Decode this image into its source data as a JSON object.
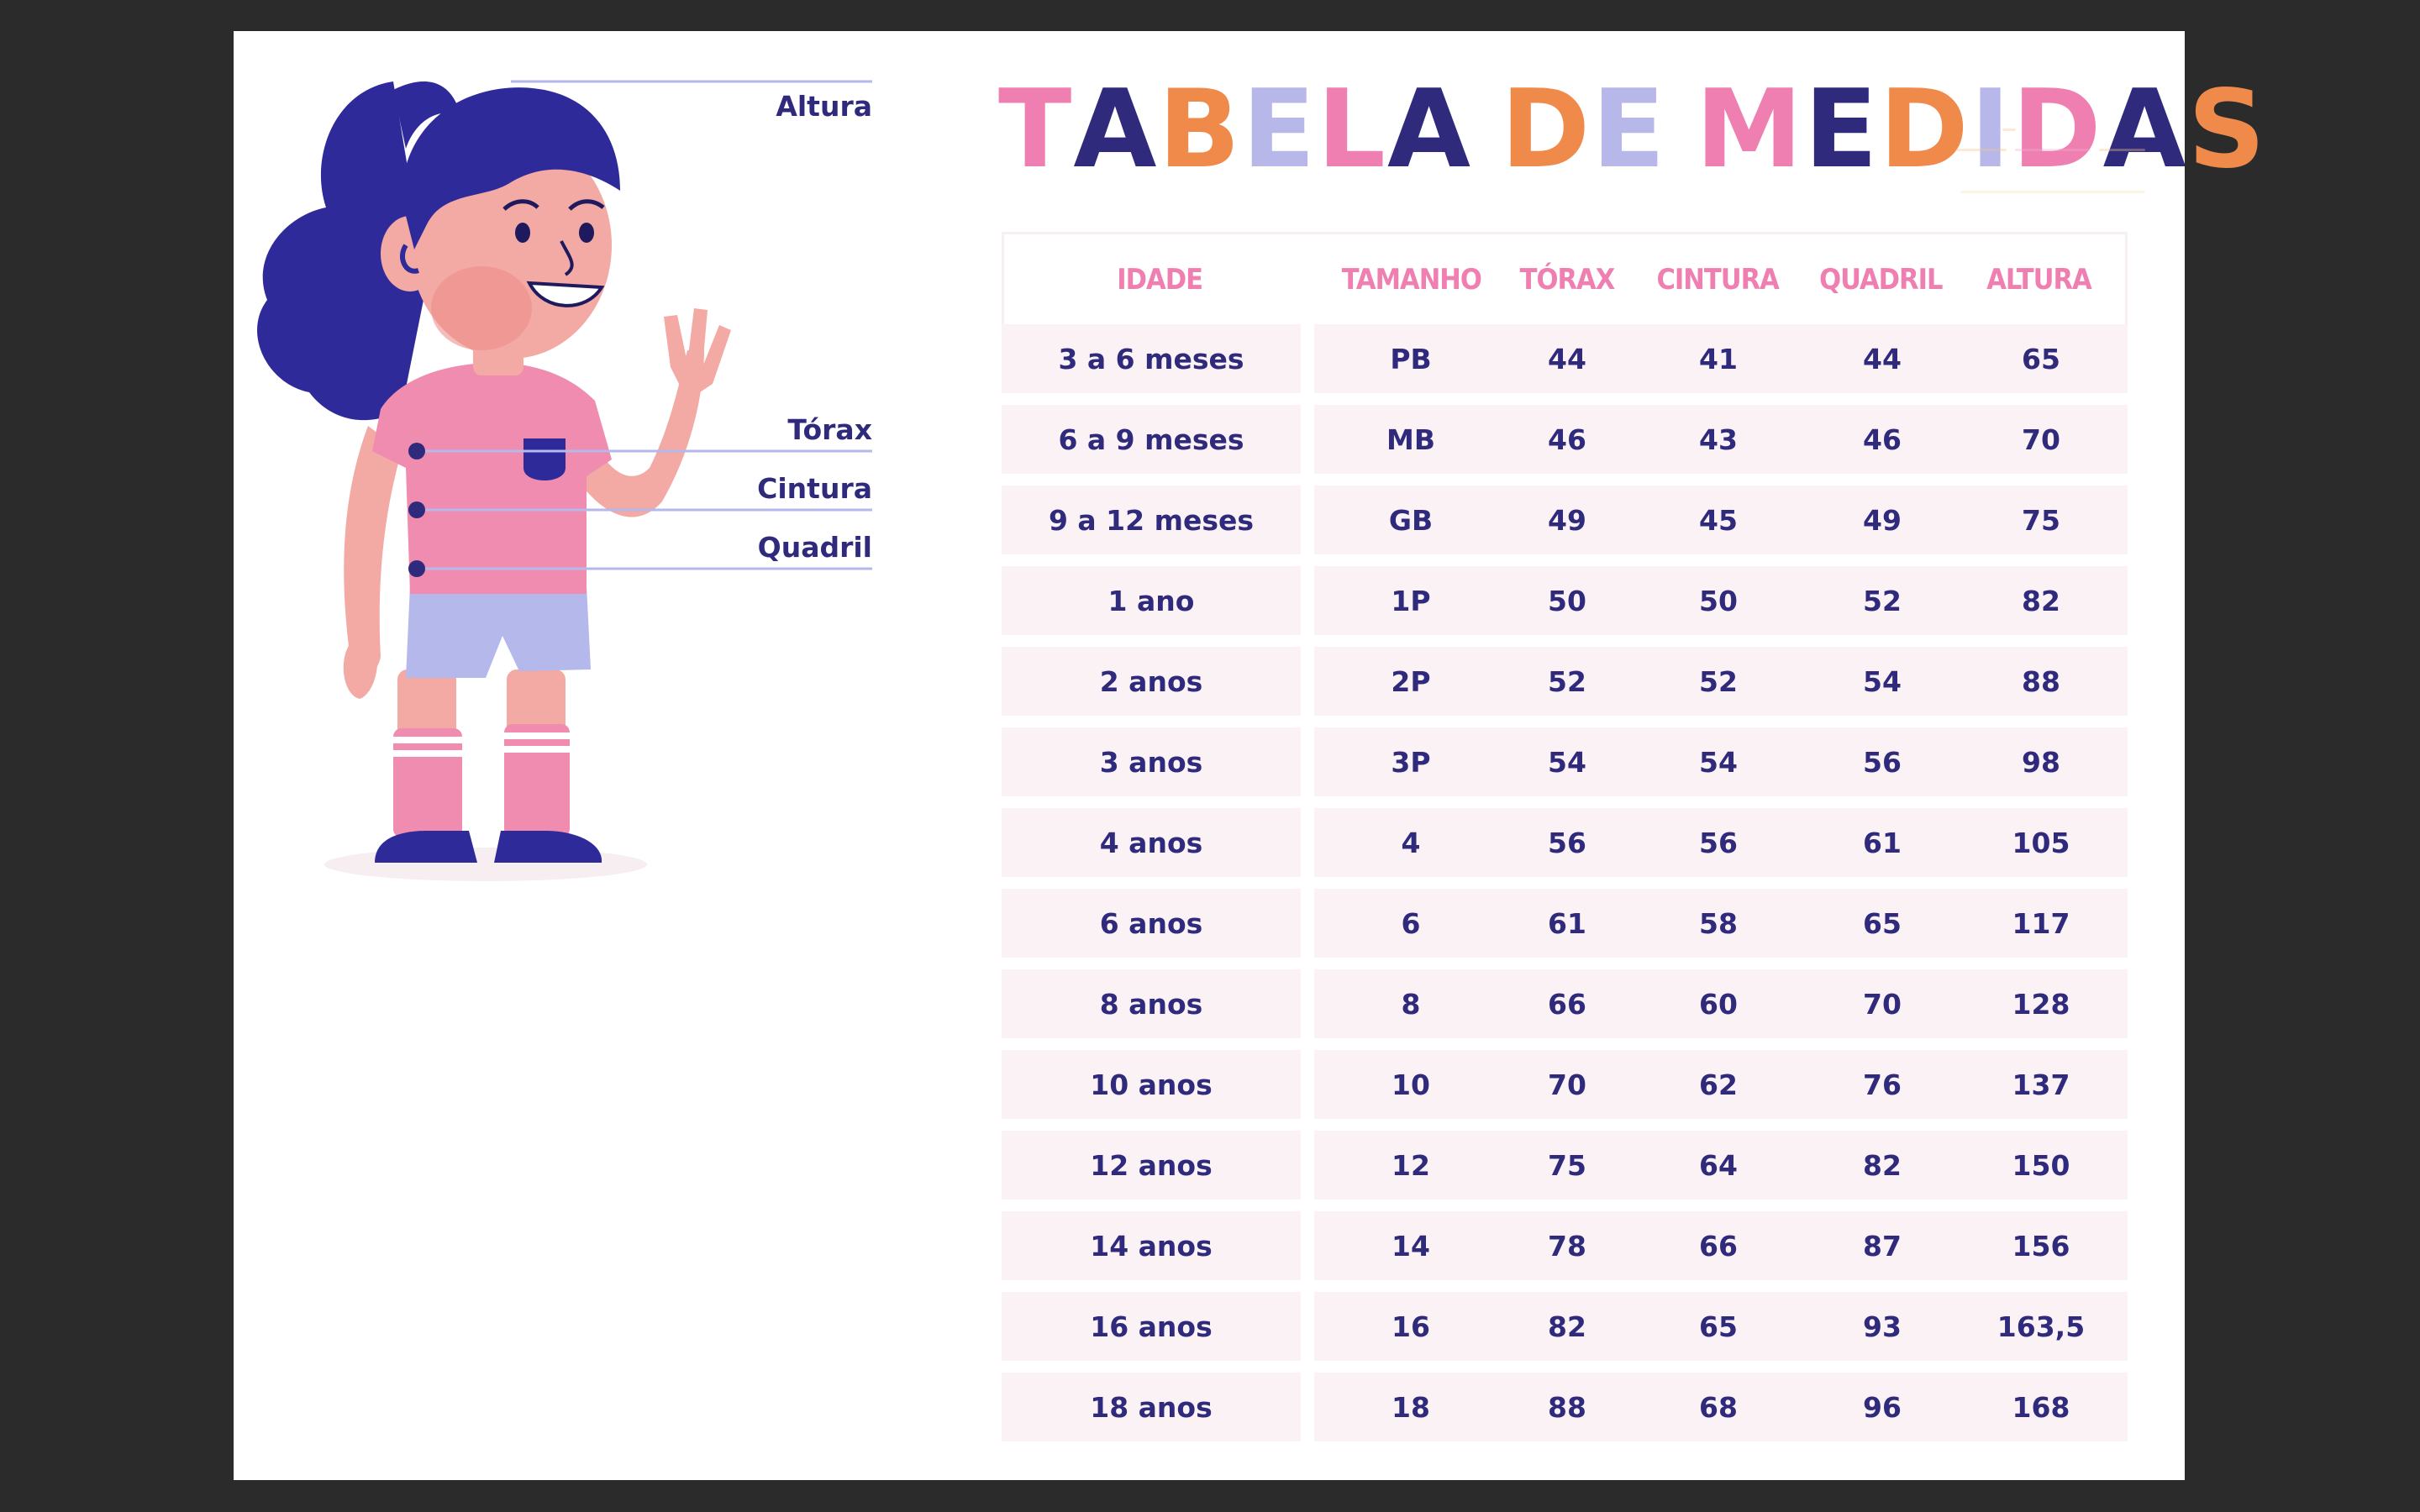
{
  "title": {
    "letters": [
      "T",
      "A",
      "B",
      "E",
      "L",
      "A",
      " ",
      "D",
      "E",
      " ",
      "M",
      "E",
      "D",
      "I",
      "D",
      "A",
      "S"
    ],
    "colors": [
      "#ef7fb0",
      "#2f2a7c",
      "#f08a4b",
      "#b8b7ea",
      "#ef7fb0",
      "#2f2a7c",
      "#ffffff",
      "#f08a4b",
      "#b8b7ea",
      "#ffffff",
      "#ef7fb0",
      "#2f2a7c",
      "#f08a4b",
      "#b8b7ea",
      "#ef7fb0",
      "#2f2a7c",
      "#f08a4b"
    ]
  },
  "figure": {
    "labels": {
      "altura": "Altura",
      "torax": "Tórax",
      "cintura": "Cintura",
      "quadril": "Quadril"
    },
    "colors": {
      "hair": "#2f2a9a",
      "skin": "#f3a9a4",
      "shirt": "#f08cb0",
      "shorts": "#b4b8ea",
      "socks": "#f08cb0",
      "shoes": "#2f2a9a",
      "line": "#b4b8ea",
      "dot": "#2f2a7c"
    }
  },
  "table": {
    "headers": [
      "IDADE",
      "TAMANHO",
      "TÓRAX",
      "CINTURA",
      "QUADRIL",
      "ALTURA"
    ],
    "rows": [
      [
        "3 a 6 meses",
        "PB",
        "44",
        "41",
        "44",
        "65"
      ],
      [
        "6 a 9 meses",
        "MB",
        "46",
        "43",
        "46",
        "70"
      ],
      [
        "9 a 12 meses",
        "GB",
        "49",
        "45",
        "49",
        "75"
      ],
      [
        "1 ano",
        "1P",
        "50",
        "50",
        "52",
        "82"
      ],
      [
        "2 anos",
        "2P",
        "52",
        "52",
        "54",
        "88"
      ],
      [
        "3 anos",
        "3P",
        "54",
        "54",
        "56",
        "98"
      ],
      [
        "4 anos",
        "4",
        "56",
        "56",
        "61",
        "105"
      ],
      [
        "6 anos",
        "6",
        "61",
        "58",
        "65",
        "117"
      ],
      [
        "8 anos",
        "8",
        "66",
        "60",
        "70",
        "128"
      ],
      [
        "10 anos",
        "10",
        "70",
        "62",
        "76",
        "137"
      ],
      [
        "12 anos",
        "12",
        "75",
        "64",
        "82",
        "150"
      ],
      [
        "14 anos",
        "14",
        "78",
        "66",
        "87",
        "156"
      ],
      [
        "16 anos",
        "16",
        "82",
        "65",
        "93",
        "163,5"
      ],
      [
        "18 anos",
        "18",
        "88",
        "68",
        "96",
        "168"
      ]
    ]
  },
  "colors": {
    "page_bg": "#2b2b2b",
    "sheet_bg": "#ffffff",
    "row_bg": "#fbf2f6",
    "text": "#2f2a7c",
    "header_text": "#ef7fb0"
  }
}
